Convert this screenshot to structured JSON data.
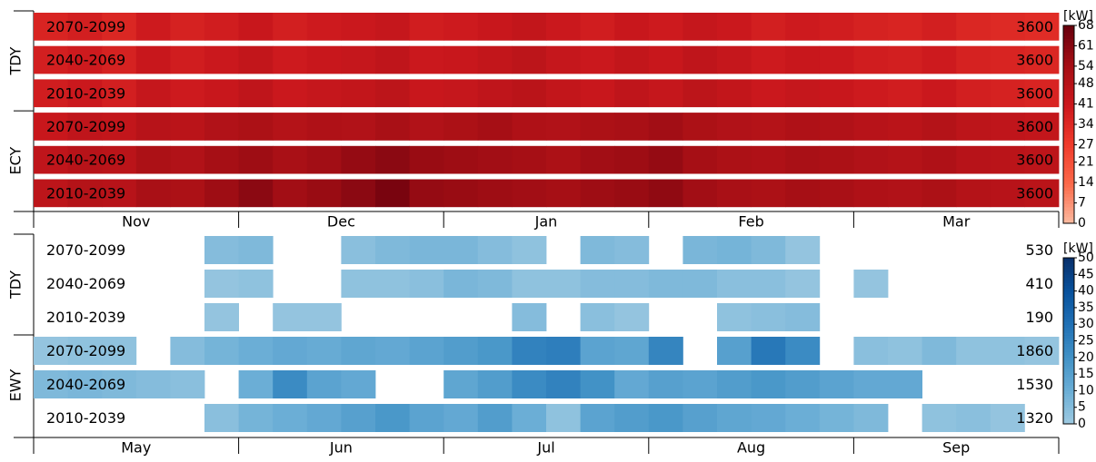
{
  "chart_data": [
    {
      "type": "heatmap",
      "categories": [
        "Nov",
        "Dec",
        "Jan",
        "Feb",
        "Mar"
      ],
      "colorbar_label": "[kW]",
      "clim": [
        0,
        68
      ],
      "cticks": [
        0,
        7,
        14,
        21,
        27,
        34,
        41,
        48,
        54,
        61,
        68
      ],
      "colormap": [
        "#fcbba1",
        "#fb6a4a",
        "#ef3b2c",
        "#cb181d",
        "#a50f15",
        "#67000d"
      ],
      "groups": [
        {
          "label": "TDY",
          "rows": [
            {
              "label": "2070-2099",
              "total": 3600,
              "values": [
                36,
                38,
                35,
                40,
                37,
                39,
                42,
                38,
                40,
                41,
                43,
                39,
                40,
                42,
                44,
                41,
                39,
                42,
                40,
                43,
                41,
                38,
                40,
                39,
                37,
                36,
                38,
                35,
                34,
                33
              ]
            },
            {
              "label": "2040-2069",
              "total": 3600,
              "values": [
                38,
                40,
                37,
                42,
                39,
                41,
                44,
                40,
                42,
                43,
                45,
                41,
                42,
                44,
                46,
                43,
                41,
                44,
                42,
                45,
                43,
                40,
                42,
                41,
                39,
                38,
                40,
                37,
                36,
                35
              ]
            },
            {
              "label": "2010-2039",
              "total": 3600,
              "values": [
                39,
                41,
                38,
                43,
                40,
                42,
                45,
                41,
                43,
                44,
                46,
                42,
                43,
                45,
                47,
                44,
                42,
                45,
                43,
                46,
                44,
                41,
                43,
                42,
                40,
                39,
                41,
                38,
                37,
                36
              ]
            }
          ]
        },
        {
          "label": "ECY",
          "rows": [
            {
              "label": "2070-2099",
              "total": 3600,
              "values": [
                42,
                45,
                44,
                48,
                47,
                50,
                52,
                49,
                51,
                50,
                53,
                50,
                52,
                54,
                51,
                50,
                52,
                53,
                55,
                52,
                50,
                49,
                51,
                50,
                48,
                47,
                49,
                46,
                45,
                44
              ]
            },
            {
              "label": "2040-2069",
              "total": 3600,
              "values": [
                45,
                48,
                47,
                52,
                50,
                54,
                56,
                53,
                55,
                58,
                60,
                57,
                56,
                55,
                54,
                52,
                55,
                56,
                58,
                54,
                52,
                51,
                53,
                52,
                50,
                49,
                51,
                48,
                47,
                46
              ]
            },
            {
              "label": "2010-2039",
              "total": 3600,
              "values": [
                46,
                49,
                48,
                53,
                52,
                56,
                60,
                55,
                57,
                60,
                64,
                58,
                57,
                56,
                55,
                54,
                56,
                57,
                59,
                55,
                53,
                52,
                54,
                53,
                51,
                50,
                52,
                49,
                48,
                47
              ]
            }
          ]
        }
      ]
    },
    {
      "type": "heatmap",
      "categories": [
        "May",
        "Jun",
        "Jul",
        "Aug",
        "Sep"
      ],
      "colorbar_label": "[kW]",
      "clim": [
        0,
        50
      ],
      "cticks": [
        0,
        5,
        10,
        15,
        20,
        25,
        30,
        35,
        40,
        45,
        50
      ],
      "colormap": [
        "#9ecae1",
        "#6baed6",
        "#4292c6",
        "#2171b5",
        "#08519c",
        "#08306b"
      ],
      "groups": [
        {
          "label": "TDY",
          "rows": [
            {
              "label": "2070-2099",
              "total": 530,
              "values": [
                null,
                null,
                null,
                null,
                null,
                5,
                6,
                null,
                null,
                4,
                6,
                7,
                7,
                5,
                3,
                null,
                6,
                5,
                null,
                7,
                8,
                6,
                2,
                null,
                null,
                null,
                null,
                null,
                null,
                null
              ]
            },
            {
              "label": "2040-2069",
              "total": 410,
              "values": [
                null,
                null,
                null,
                null,
                null,
                2,
                3,
                null,
                null,
                3,
                3,
                4,
                7,
                6,
                3,
                3,
                5,
                5,
                6,
                6,
                4,
                4,
                2,
                null,
                2,
                null,
                null,
                null,
                null,
                null
              ]
            },
            {
              "label": "2010-2039",
              "total": 190,
              "values": [
                null,
                null,
                null,
                null,
                null,
                2,
                null,
                2,
                2,
                null,
                null,
                null,
                null,
                null,
                5,
                null,
                4,
                2,
                null,
                null,
                3,
                4,
                5,
                null,
                null,
                null,
                null,
                null,
                null,
                null
              ]
            }
          ]
        },
        {
          "label": "EWY",
          "rows": [
            {
              "label": "2070-2099",
              "total": 1860,
              "values": [
                2,
                3,
                3,
                null,
                5,
                8,
                10,
                12,
                11,
                13,
                12,
                14,
                16,
                18,
                25,
                26,
                14,
                13,
                24,
                null,
                15,
                28,
                22,
                null,
                4,
                3,
                6,
                3,
                3,
                2
              ]
            },
            {
              "label": "2040-2069",
              "total": 1530,
              "values": [
                6,
                7,
                6,
                5,
                4,
                null,
                10,
                22,
                14,
                12,
                null,
                null,
                13,
                16,
                22,
                25,
                20,
                12,
                15,
                14,
                16,
                18,
                16,
                14,
                12,
                12,
                null,
                null,
                null,
                null
              ]
            },
            {
              "label": "2010-2039",
              "total": 1320,
              "values": [
                null,
                null,
                null,
                null,
                null,
                4,
                8,
                10,
                12,
                15,
                18,
                14,
                12,
                16,
                10,
                3,
                14,
                16,
                18,
                15,
                13,
                12,
                10,
                8,
                6,
                null,
                3,
                4,
                2,
                null
              ]
            }
          ]
        }
      ]
    }
  ]
}
